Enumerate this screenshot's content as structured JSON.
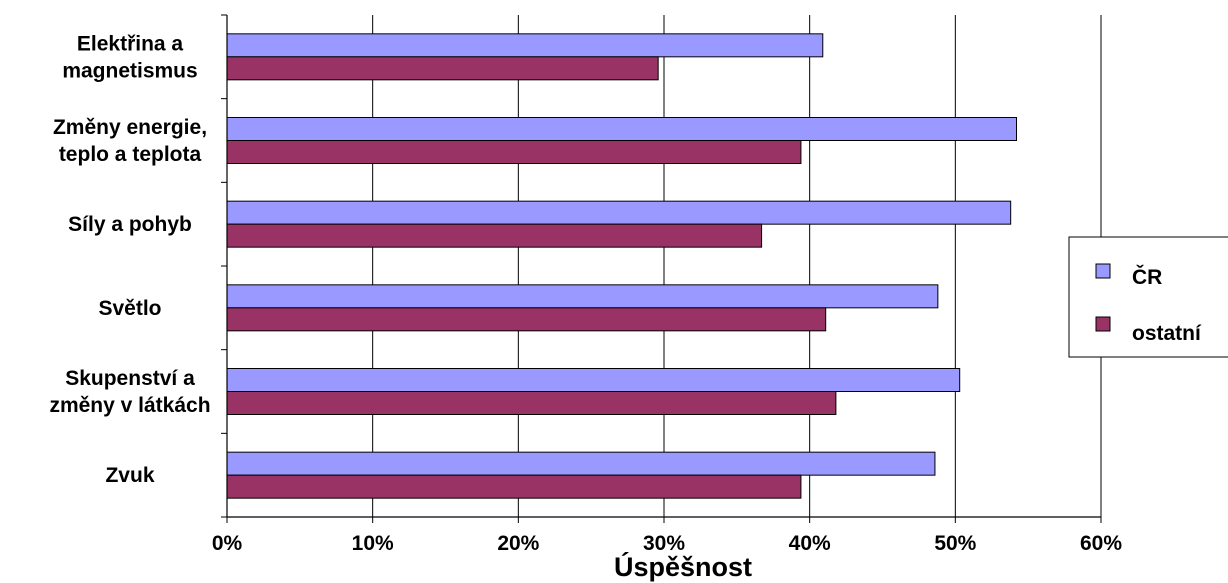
{
  "chart_data": {
    "type": "bar",
    "orientation": "horizontal",
    "categories": [
      [
        "Elektřina a",
        "magnetismus"
      ],
      [
        "Změny energie,",
        "teplo a teplota"
      ],
      [
        "Síly a pohyb"
      ],
      [
        "Světlo"
      ],
      [
        "Skupenství a",
        "změny v látkách"
      ],
      [
        "Zvuk"
      ]
    ],
    "series": [
      {
        "name": "ČR",
        "color": "#9999ff",
        "values": [
          0.409,
          0.542,
          0.538,
          0.488,
          0.503,
          0.486
        ]
      },
      {
        "name": "ostatní",
        "color": "#993366",
        "values": [
          0.296,
          0.394,
          0.367,
          0.411,
          0.418,
          0.394
        ]
      }
    ],
    "x_ticks": [
      "0%",
      "10%",
      "20%",
      "30%",
      "40%",
      "50%",
      "60%"
    ],
    "xlim": [
      0,
      0.6
    ],
    "xlabel": "Úspěšnost",
    "ylabel": "",
    "title": "",
    "grid": "vertical",
    "legend_position": "right"
  }
}
